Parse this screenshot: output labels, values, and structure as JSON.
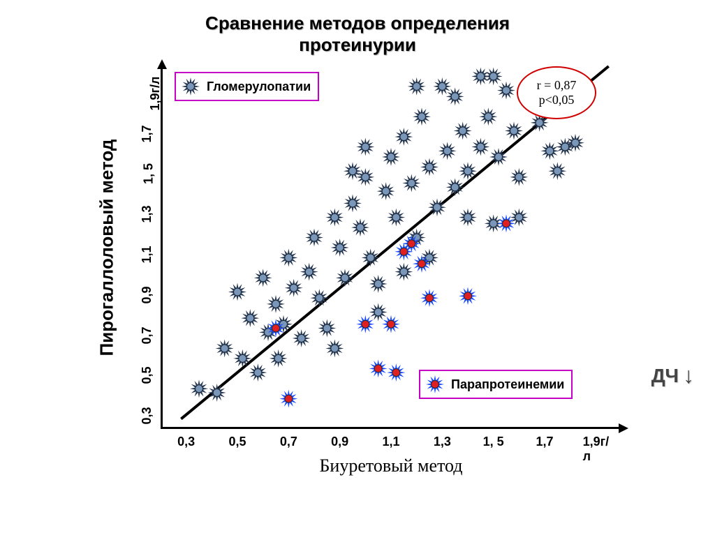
{
  "title_line1": "Сравнение методов определения",
  "title_line2": "протеинурии",
  "x_axis_label": "Биуретовый метод",
  "y_axis_label": "Пирогаллоловый метод",
  "x_ticks": [
    "0,3",
    "0,5",
    "0,7",
    "0,9",
    "1,1",
    "1,3",
    "1, 5",
    "1,7",
    "1,9г/л"
  ],
  "y_ticks": [
    "0,3",
    "0,5",
    "0,7",
    "0,9",
    "1,1",
    "1,3",
    "1, 5",
    "1,7",
    "1,9г/л"
  ],
  "x_range": [
    0.2,
    2.0
  ],
  "y_range": [
    0.2,
    2.0
  ],
  "legend1": {
    "label": "Гломерулопатии",
    "border": "#c400c4"
  },
  "legend2": {
    "label": "Парапротеинемии",
    "border": "#c400c4"
  },
  "stats": {
    "line1": "r = 0,87",
    "line2": "p<0,05",
    "border": "#d00000"
  },
  "side_label": "ДЧ",
  "colors": {
    "series1_fill": "#7a96b8",
    "series1_spike": "#2a3b55",
    "series2_fill": "#e02020",
    "series2_spike": "#2050ff",
    "regression": "#000000",
    "background": "#ffffff"
  },
  "marker_size": 13,
  "regression_line": {
    "x1": 0.28,
    "y1": 0.25,
    "x2": 1.95,
    "y2": 2.0,
    "width": 4
  },
  "series1": [
    [
      0.35,
      0.4
    ],
    [
      0.42,
      0.38
    ],
    [
      0.45,
      0.6
    ],
    [
      0.52,
      0.55
    ],
    [
      0.55,
      0.75
    ],
    [
      0.58,
      0.48
    ],
    [
      0.6,
      0.95
    ],
    [
      0.62,
      0.68
    ],
    [
      0.65,
      0.82
    ],
    [
      0.68,
      0.72
    ],
    [
      0.7,
      1.05
    ],
    [
      0.72,
      0.9
    ],
    [
      0.75,
      0.65
    ],
    [
      0.78,
      0.98
    ],
    [
      0.8,
      1.15
    ],
    [
      0.82,
      0.85
    ],
    [
      0.85,
      0.7
    ],
    [
      0.88,
      1.25
    ],
    [
      0.9,
      1.1
    ],
    [
      0.92,
      0.95
    ],
    [
      0.95,
      1.32
    ],
    [
      0.98,
      1.2
    ],
    [
      1.0,
      1.45
    ],
    [
      1.02,
      1.05
    ],
    [
      1.05,
      0.92
    ],
    [
      1.08,
      1.38
    ],
    [
      1.1,
      1.55
    ],
    [
      1.12,
      1.25
    ],
    [
      1.15,
      1.65
    ],
    [
      1.18,
      1.42
    ],
    [
      1.2,
      1.15
    ],
    [
      1.22,
      1.75
    ],
    [
      1.25,
      1.5
    ],
    [
      1.28,
      1.3
    ],
    [
      1.3,
      1.9
    ],
    [
      1.32,
      1.58
    ],
    [
      1.35,
      1.4
    ],
    [
      1.35,
      1.85
    ],
    [
      1.38,
      1.68
    ],
    [
      1.4,
      1.48
    ],
    [
      1.45,
      1.95
    ],
    [
      1.45,
      1.6
    ],
    [
      1.48,
      1.75
    ],
    [
      1.52,
      1.55
    ],
    [
      1.55,
      1.88
    ],
    [
      1.58,
      1.68
    ],
    [
      1.6,
      1.45
    ],
    [
      1.65,
      1.92
    ],
    [
      1.68,
      1.72
    ],
    [
      1.72,
      1.58
    ],
    [
      1.78,
      1.6
    ],
    [
      1.82,
      1.62
    ],
    [
      1.5,
      1.95
    ],
    [
      1.2,
      1.9
    ],
    [
      1.0,
      1.6
    ],
    [
      0.95,
      1.48
    ],
    [
      1.15,
      0.98
    ],
    [
      1.25,
      1.05
    ],
    [
      1.4,
      1.25
    ],
    [
      1.5,
      1.22
    ],
    [
      0.5,
      0.88
    ],
    [
      0.66,
      0.55
    ],
    [
      0.88,
      0.6
    ],
    [
      1.05,
      0.78
    ],
    [
      1.6,
      1.25
    ],
    [
      1.75,
      1.48
    ]
  ],
  "series2": [
    [
      0.7,
      0.35
    ],
    [
      0.65,
      0.7
    ],
    [
      1.0,
      0.72
    ],
    [
      1.1,
      0.72
    ],
    [
      1.05,
      0.5
    ],
    [
      1.12,
      0.48
    ],
    [
      1.25,
      0.85
    ],
    [
      1.4,
      0.86
    ],
    [
      1.15,
      1.08
    ],
    [
      1.18,
      1.12
    ],
    [
      1.22,
      1.02
    ],
    [
      1.55,
      1.22
    ]
  ]
}
